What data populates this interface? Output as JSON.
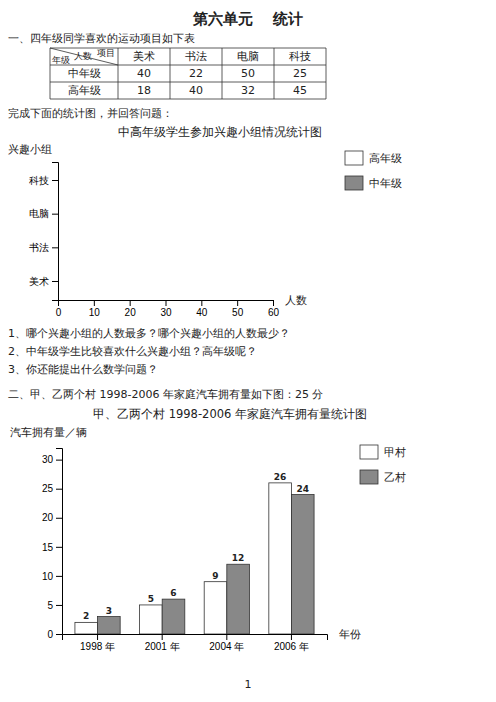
{
  "title": "第六单元    统计",
  "annotations": [
    "一、四年级同学喜欢的运动项目如下表",
    "完成下面的统计图，并回答问题：",
    "1、哪个兴趣小组的人数最多？哪个兴趣小组的人数最少？",
    "2、中年级学生比较喜欢什么兴趣小组？高年级呢？",
    "3、你还能提出什么数学问题？",
    "二、甲、乙两个村 1998-2006 年家庭汽车拥有量如下图：25 分",
    "1"
  ],
  "chart_data": [
    {
      "type": "table",
      "annotations": [
        "项目",
        "人数",
        "年级"
      ],
      "categories": [
        "美术",
        "书法",
        "电脑",
        "科技"
      ],
      "series": [
        {
          "name": "中年级",
          "values": [
            40,
            22,
            50,
            25
          ]
        },
        {
          "name": "高年级",
          "values": [
            18,
            40,
            32,
            45
          ]
        }
      ]
    },
    {
      "type": "bar",
      "orientation": "horizontal",
      "title": "中高年级学生参加兴趣小组情况统计图",
      "xlabel": "人数",
      "ylabel": "兴趣小组",
      "categories": [
        "美术",
        "书法",
        "电脑",
        "科技"
      ],
      "series": [
        {
          "name": "高年级",
          "color": "#ffffff",
          "values": [
            null,
            null,
            null,
            null
          ]
        },
        {
          "name": "中年级",
          "color": "#888888",
          "values": [
            null,
            null,
            null,
            null
          ]
        }
      ],
      "xlim": [
        0,
        60
      ],
      "xticks": [
        0,
        10,
        20,
        30,
        40,
        50,
        60
      ],
      "legend": "upper right"
    },
    {
      "type": "bar",
      "title": "甲、乙两个村 1998-2006 年家庭汽车拥有量统计图",
      "xlabel": "年份",
      "ylabel": "汽车拥有量／辆",
      "categories": [
        "1998 年",
        "2001 年",
        "2004 年",
        "2006 年"
      ],
      "series": [
        {
          "name": "甲村",
          "color": "#ffffff",
          "values": [
            2,
            5,
            9,
            26
          ]
        },
        {
          "name": "乙村",
          "color": "#888888",
          "values": [
            3,
            6,
            12,
            24
          ]
        }
      ],
      "ylim": [
        0,
        32
      ],
      "yticks": [
        0,
        5,
        10,
        15,
        20,
        25,
        30
      ],
      "data_labels": true,
      "legend": "upper right"
    }
  ]
}
